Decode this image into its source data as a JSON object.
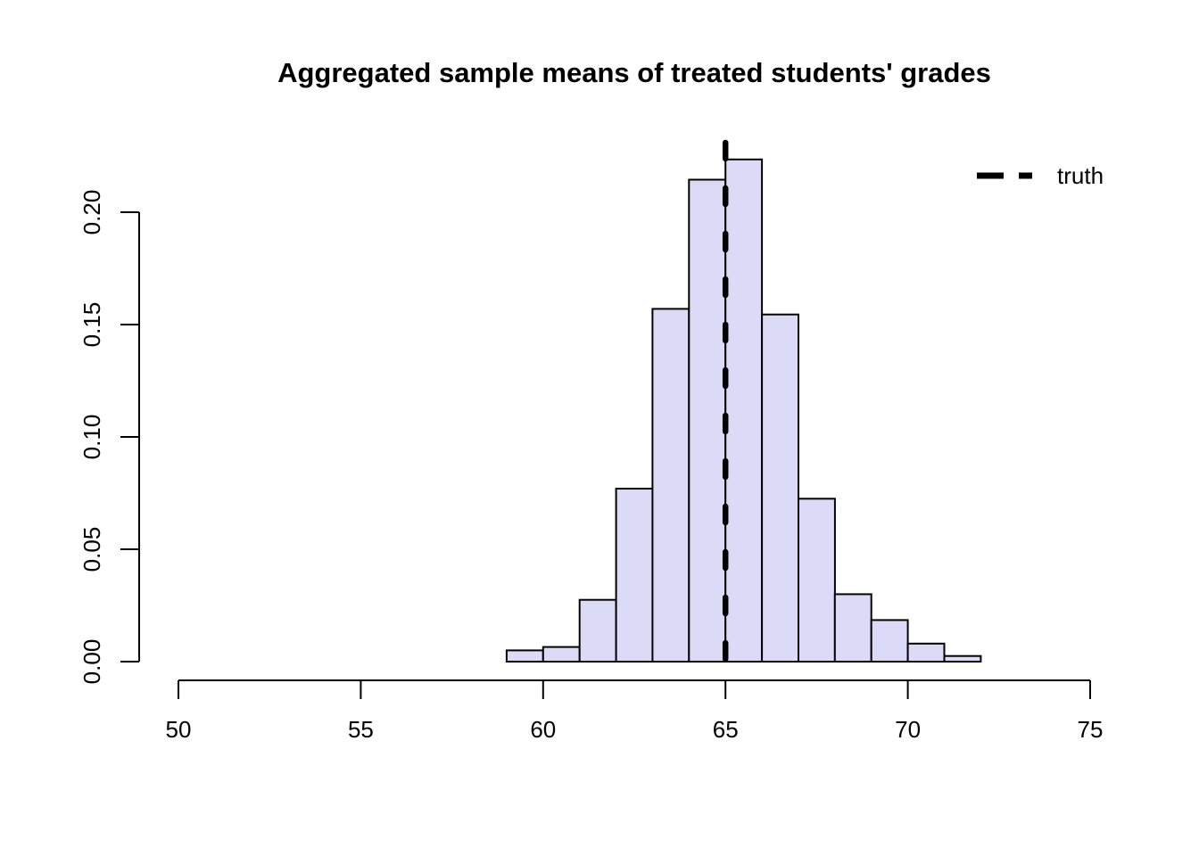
{
  "chart_data": {
    "type": "bar",
    "subtype": "histogram",
    "title": "Aggregated sample means of treated students' grades",
    "xlabel": "",
    "ylabel": "",
    "xlim": [
      50,
      75
    ],
    "ylim": [
      0,
      0.2
    ],
    "x_ticks": [
      50,
      55,
      60,
      65,
      70,
      75
    ],
    "y_ticks": [
      0.0,
      0.05,
      0.1,
      0.15,
      0.2
    ],
    "y_tick_labels": [
      "0.00",
      "0.05",
      "0.10",
      "0.15",
      "0.20"
    ],
    "grid": "off",
    "bin_width": 1,
    "bins": [
      {
        "x0": 59,
        "x1": 60,
        "density": 0.005
      },
      {
        "x0": 60,
        "x1": 61,
        "density": 0.0065
      },
      {
        "x0": 61,
        "x1": 62,
        "density": 0.0275
      },
      {
        "x0": 62,
        "x1": 63,
        "density": 0.077
      },
      {
        "x0": 63,
        "x1": 64,
        "density": 0.157
      },
      {
        "x0": 64,
        "x1": 65,
        "density": 0.2145
      },
      {
        "x0": 65,
        "x1": 66,
        "density": 0.2235
      },
      {
        "x0": 66,
        "x1": 67,
        "density": 0.1545
      },
      {
        "x0": 67,
        "x1": 68,
        "density": 0.0725
      },
      {
        "x0": 68,
        "x1": 69,
        "density": 0.03
      },
      {
        "x0": 69,
        "x1": 70,
        "density": 0.0185
      },
      {
        "x0": 70,
        "x1": 71,
        "density": 0.008
      },
      {
        "x0": 71,
        "x1": 72,
        "density": 0.0025
      }
    ],
    "truth_line": {
      "x": 65,
      "style": "dashed",
      "color": "#000000"
    },
    "legend": [
      {
        "label": "truth",
        "line_style": "dashed",
        "color": "#000000"
      }
    ],
    "legend_position": "top-right",
    "colors": {
      "bar_fill": "#DBDBF8",
      "bar_stroke": "#000000",
      "axis": "#000000",
      "background": "#FFFFFF"
    }
  }
}
